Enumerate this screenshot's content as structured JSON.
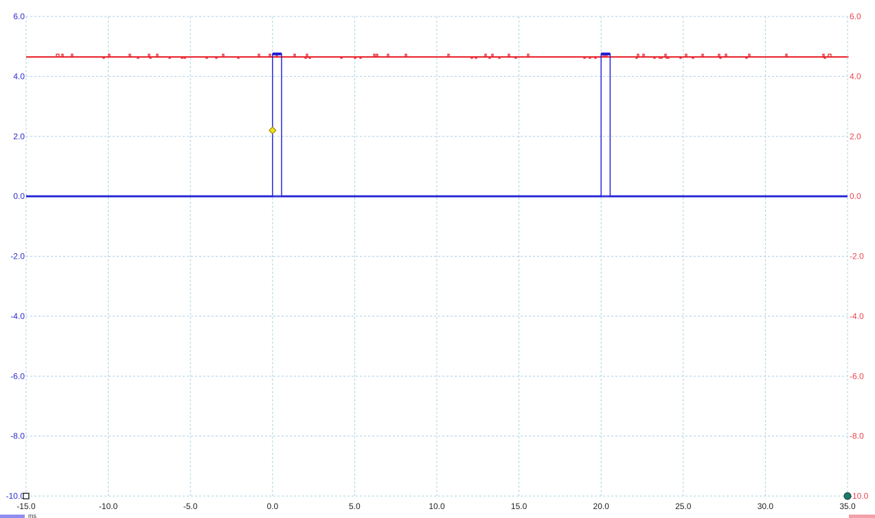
{
  "chart_data": {
    "type": "line",
    "title": "",
    "xlabel": "",
    "ylabel": "",
    "x_unit": "ms",
    "xlim": [
      -15.0,
      35.0
    ],
    "ylim_left": [
      -10.0,
      6.0
    ],
    "ylim_right": [
      -10.0,
      6.0
    ],
    "x_ticks": [
      "-15.0",
      "-10.0",
      "-5.0",
      "0.0",
      "5.0",
      "10.0",
      "15.0",
      "20.0",
      "25.0",
      "30.0",
      "35.0"
    ],
    "y_ticks_left": [
      "6.0",
      "4.0",
      "2.0",
      "0.0",
      "-2.0",
      "-4.0",
      "-6.0",
      "-8.0",
      "-10.0"
    ],
    "y_ticks_right": [
      "6.0",
      "4.0",
      "2.0",
      "0.0",
      "-2.0",
      "-4.0",
      "-6.0",
      "-8.0",
      "-10.0"
    ],
    "grid": true,
    "series": [
      {
        "color": "#e8202a",
        "axis": "right",
        "x": [
          -15.0,
          35.0
        ],
        "y": [
          4.65,
          4.65
        ],
        "noise": 0.06
      },
      {
        "color": "#1a1ad6",
        "axis": "left",
        "x": [
          -15.0,
          0.0,
          0.0,
          0.55,
          0.55,
          20.0,
          20.0,
          20.55,
          20.55,
          35.0
        ],
        "y": [
          0.0,
          0.0,
          4.75,
          4.75,
          0.0,
          0.0,
          4.75,
          4.75,
          0.0,
          0.0
        ]
      }
    ],
    "trigger_marker": {
      "x": 0.0,
      "y": 2.2,
      "color": "#f2e21a"
    },
    "annotations": [
      {
        "shape": "square",
        "x": -15.0,
        "y": -10.0,
        "color": "#000000"
      },
      {
        "shape": "circle",
        "x": 35.0,
        "y": -10.0,
        "color": "#1f7a6e"
      }
    ],
    "colors": {
      "left_axis": "#2b2bcc",
      "right_axis": "#e8464f",
      "grid": "#a9cfe0",
      "left_badge": "#8e8ef0",
      "right_badge": "#f2a1a8"
    }
  }
}
